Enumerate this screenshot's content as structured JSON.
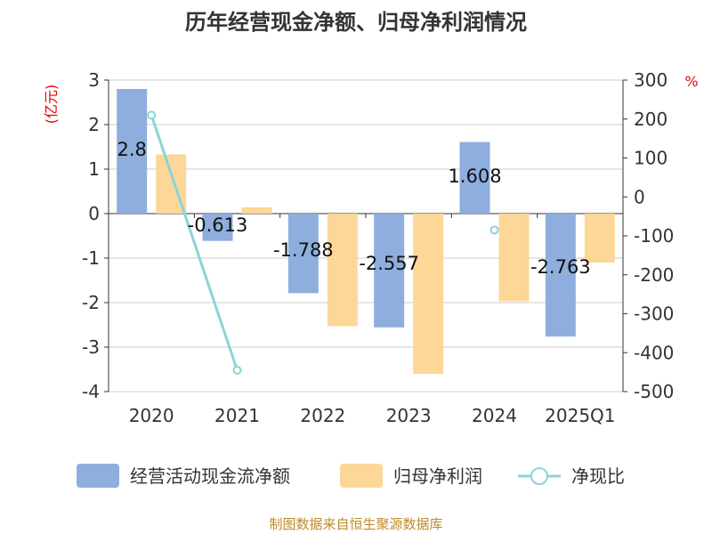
{
  "chart_data": {
    "type": "bar",
    "title": "历年经营现金净额、归母净利润情况",
    "categories": [
      "2020",
      "2021",
      "2022",
      "2023",
      "2024",
      "2025Q1"
    ],
    "left_axis": {
      "unit": "(亿元)",
      "ylim": [
        -4,
        3
      ],
      "ticks": [
        "3",
        "2",
        "1",
        "0",
        "-1",
        "-2",
        "-3",
        "-4"
      ]
    },
    "right_axis": {
      "unit": "%",
      "ylim": [
        -500,
        300
      ],
      "ticks": [
        "300",
        "200",
        "100",
        "0",
        "-100",
        "-200",
        "-300",
        "-400",
        "-500"
      ]
    },
    "series": [
      {
        "name": "经营活动现金流净额",
        "kind": "bar",
        "axis": "left",
        "color": "#8eaedd",
        "values": [
          2.8,
          -0.613,
          -1.788,
          -2.557,
          1.608,
          -2.763
        ],
        "labels": [
          "2.8",
          "-0.613",
          "-1.788",
          "-2.557",
          "1.608",
          "-2.763"
        ]
      },
      {
        "name": "归母净利润",
        "kind": "bar",
        "axis": "left",
        "color": "#fdd798",
        "values": [
          1.33,
          0.14,
          -2.53,
          -3.6,
          -1.97,
          -1.1
        ]
      },
      {
        "name": "净现比",
        "kind": "line",
        "axis": "right",
        "color": "#8dd3d8",
        "values": [
          210,
          -445,
          null,
          null,
          -85,
          null
        ]
      }
    ],
    "grid": true,
    "legend": "bottom"
  },
  "footer": {
    "source": "制图数据来自恒生聚源数据库"
  }
}
